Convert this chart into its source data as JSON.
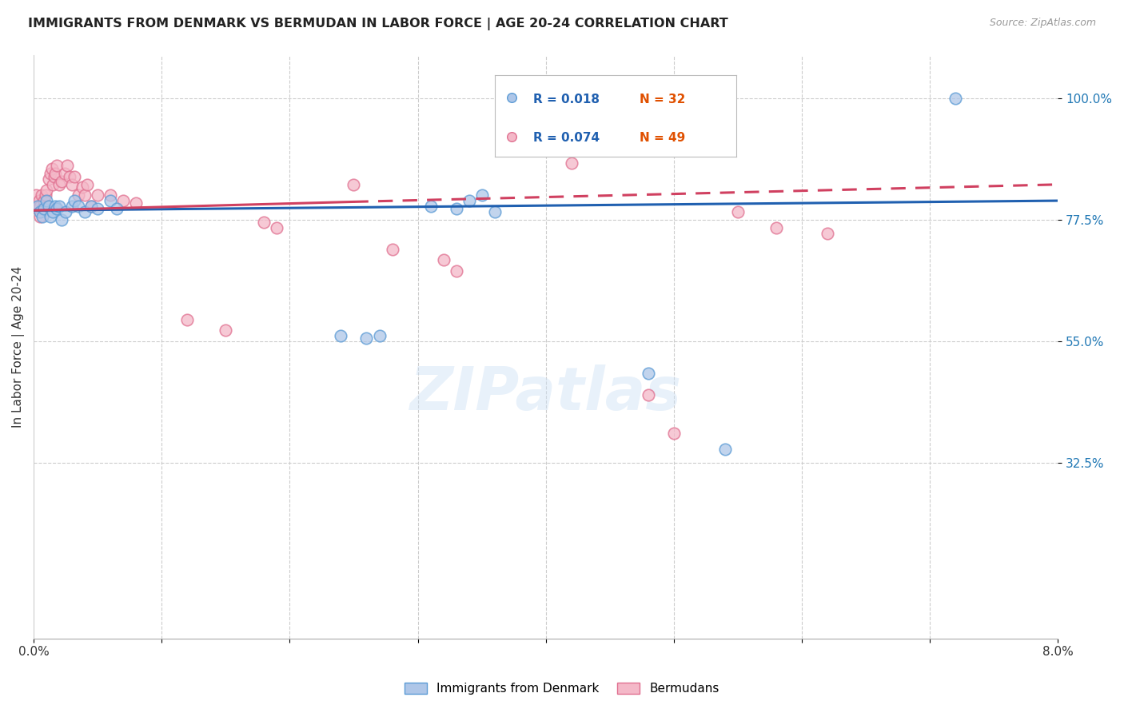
{
  "title": "IMMIGRANTS FROM DENMARK VS BERMUDAN IN LABOR FORCE | AGE 20-24 CORRELATION CHART",
  "source": "Source: ZipAtlas.com",
  "ylabel": "In Labor Force | Age 20-24",
  "xmin": 0.0,
  "xmax": 0.08,
  "ymin": 0.0,
  "ymax": 1.08,
  "legend_blue_r": "0.018",
  "legend_blue_n": "32",
  "legend_pink_r": "0.074",
  "legend_pink_n": "49",
  "denmark_x": [
    0.0003,
    0.0005,
    0.0007,
    0.0008,
    0.001,
    0.0012,
    0.0013,
    0.0015,
    0.0017,
    0.0018,
    0.002,
    0.0022,
    0.0025,
    0.003,
    0.0032,
    0.0035,
    0.004,
    0.0045,
    0.005,
    0.006,
    0.0065,
    0.024,
    0.026,
    0.027,
    0.031,
    0.033,
    0.034,
    0.035,
    0.036,
    0.048,
    0.054,
    0.072
  ],
  "denmark_y": [
    0.8,
    0.79,
    0.78,
    0.795,
    0.81,
    0.8,
    0.78,
    0.79,
    0.8,
    0.795,
    0.8,
    0.775,
    0.79,
    0.8,
    0.81,
    0.8,
    0.79,
    0.8,
    0.795,
    0.81,
    0.795,
    0.56,
    0.555,
    0.56,
    0.8,
    0.795,
    0.81,
    0.82,
    0.79,
    0.49,
    0.35,
    1.0
  ],
  "bermudan_x": [
    0.0002,
    0.0003,
    0.0004,
    0.0005,
    0.0005,
    0.0006,
    0.0007,
    0.0008,
    0.0009,
    0.001,
    0.0011,
    0.0012,
    0.0013,
    0.0014,
    0.0015,
    0.0016,
    0.0017,
    0.0018,
    0.002,
    0.0022,
    0.0024,
    0.0026,
    0.0028,
    0.003,
    0.0032,
    0.0035,
    0.0038,
    0.004,
    0.0042,
    0.0045,
    0.005,
    0.006,
    0.007,
    0.008,
    0.012,
    0.015,
    0.018,
    0.019,
    0.025,
    0.028,
    0.032,
    0.033,
    0.037,
    0.042,
    0.048,
    0.05,
    0.055,
    0.058,
    0.062
  ],
  "bermudan_y": [
    0.82,
    0.795,
    0.81,
    0.78,
    0.8,
    0.82,
    0.795,
    0.81,
    0.82,
    0.83,
    0.8,
    0.85,
    0.86,
    0.87,
    0.84,
    0.855,
    0.86,
    0.875,
    0.84,
    0.845,
    0.86,
    0.875,
    0.855,
    0.84,
    0.855,
    0.82,
    0.835,
    0.82,
    0.84,
    0.8,
    0.82,
    0.82,
    0.81,
    0.805,
    0.59,
    0.57,
    0.77,
    0.76,
    0.84,
    0.72,
    0.7,
    0.68,
    0.92,
    0.88,
    0.45,
    0.38,
    0.79,
    0.76,
    0.75
  ],
  "blue_color": "#aec6e8",
  "blue_edge": "#5b9bd5",
  "pink_color": "#f4b8c8",
  "pink_edge": "#e07090",
  "blue_line_color": "#2060b0",
  "pink_line_color": "#d04060",
  "marker_size": 110,
  "alpha": 0.75,
  "ytick_vals": [
    0.325,
    0.55,
    0.775,
    1.0
  ],
  "ytick_labels": [
    "32.5%",
    "55.0%",
    "77.5%",
    "100.0%"
  ],
  "xtick_vals": [
    0.0,
    0.01,
    0.02,
    0.03,
    0.04,
    0.05,
    0.06,
    0.07,
    0.08
  ],
  "grid_xticks": [
    0.01,
    0.02,
    0.03,
    0.04,
    0.05,
    0.06,
    0.07
  ],
  "blue_line_x": [
    0.0,
    0.08
  ],
  "blue_line_y": [
    0.792,
    0.81
  ],
  "pink_line_x": [
    0.0,
    0.045
  ],
  "pink_line_y": [
    0.792,
    0.84
  ]
}
